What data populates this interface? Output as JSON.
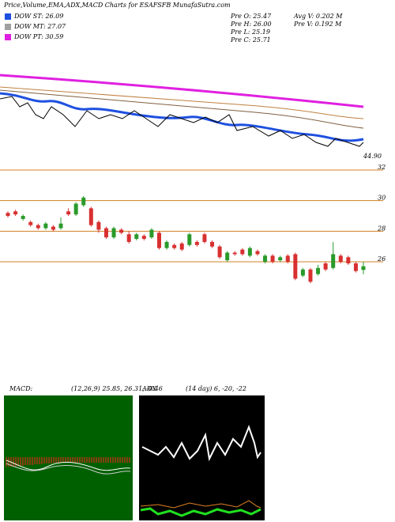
{
  "header": {
    "title": "Price,Volume,EMA,ADX,MACD Charts for ESAFSFB MunafaSutra.com",
    "legend": [
      {
        "label": "DOW ST: 26.09",
        "color": "#1e50e0"
      },
      {
        "label": "DOW MT: 27.07",
        "color": "#a0a0a0"
      },
      {
        "label": "DOW PT: 30.59",
        "color": "#e020e0"
      }
    ],
    "stats": [
      "Pre  O: 25.47",
      "Pre  H: 26.00",
      "Pre  L: 25.19",
      "Pre  C: 25.71",
      "Avg V: 0.202  M",
      "Pre  V: 0.192  M"
    ],
    "ema_label": "44.90"
  },
  "chart_data": {
    "type": "candlestick",
    "open": [
      29.2,
      29.3,
      28.8,
      28.6,
      28.4,
      28.2,
      28.3,
      28.2,
      29.3,
      29.1,
      29.7,
      29.5,
      28.6,
      28.2,
      27.6,
      28.1,
      27.8,
      27.5,
      27.7,
      27.6,
      27.9,
      26.9,
      27.1,
      27.2,
      27.1,
      27.3,
      27.8,
      27.3,
      27.0,
      26.1,
      26.6,
      26.8,
      26.4,
      26.7,
      26.0,
      26.4,
      26.1,
      26.4,
      26.5,
      25.1,
      25.5,
      25.2,
      25.9,
      25.6,
      26.4,
      26.3,
      25.9,
      25.47
    ],
    "close": [
      29.0,
      29.1,
      29.0,
      28.4,
      28.2,
      28.5,
      28.1,
      28.5,
      29.1,
      29.8,
      30.2,
      28.4,
      28.1,
      27.6,
      28.2,
      27.9,
      27.3,
      27.8,
      27.5,
      28.1,
      26.9,
      27.3,
      26.9,
      26.8,
      27.8,
      27.1,
      27.3,
      27.0,
      26.3,
      26.6,
      26.5,
      26.5,
      26.9,
      26.5,
      26.4,
      26.0,
      26.3,
      26.0,
      24.9,
      25.5,
      24.7,
      25.6,
      25.5,
      26.5,
      26.0,
      25.9,
      25.4,
      25.71
    ],
    "high": [
      29.3,
      29.4,
      29.1,
      28.7,
      28.5,
      28.6,
      28.4,
      28.9,
      29.5,
      29.9,
      30.3,
      29.6,
      28.7,
      28.3,
      28.3,
      28.2,
      28.0,
      27.9,
      27.8,
      28.2,
      28.0,
      27.4,
      27.2,
      27.3,
      27.9,
      27.4,
      27.9,
      27.4,
      27.1,
      26.7,
      26.7,
      26.9,
      27.0,
      26.8,
      26.5,
      26.5,
      26.4,
      26.5,
      26.6,
      25.6,
      25.6,
      25.8,
      26.0,
      27.3,
      26.5,
      26.4,
      26.0,
      26.0
    ],
    "low": [
      28.9,
      29.0,
      28.7,
      28.3,
      28.1,
      28.1,
      28.0,
      28.1,
      29.0,
      29.0,
      29.6,
      28.3,
      27.9,
      27.5,
      27.5,
      27.8,
      27.2,
      27.4,
      27.4,
      27.5,
      26.8,
      26.8,
      26.8,
      26.7,
      27.0,
      27.0,
      27.2,
      26.9,
      26.2,
      26.0,
      26.4,
      26.4,
      26.3,
      26.4,
      25.9,
      25.9,
      26.0,
      25.9,
      24.8,
      25.0,
      24.6,
      25.1,
      25.4,
      25.5,
      25.9,
      25.8,
      25.3,
      25.19
    ],
    "up_color": "#2a9a2a",
    "down_color": "#d83030",
    "ylim": [
      24.4,
      32
    ],
    "yticks": [
      32,
      30,
      28,
      26
    ],
    "grid_color": "#d08020"
  },
  "indicators": {
    "macd_label": "MACD:",
    "macd_params": "(12,26,9) 25.85, 26.31, -0.46",
    "adx_label": "ADX",
    "adx_params": "(14  day) 6, -20, -22"
  }
}
